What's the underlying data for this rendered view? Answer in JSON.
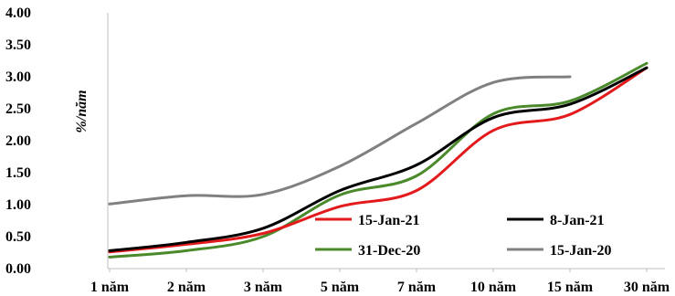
{
  "chart_data": {
    "type": "line",
    "title": "",
    "xlabel": "",
    "ylabel": "%/năm",
    "categories": [
      "1 năm",
      "2 năm",
      "3 năm",
      "5 năm",
      "7 năm",
      "10 năm",
      "15 năm",
      "30 năm"
    ],
    "ylim": [
      0,
      4
    ],
    "yticks": [
      "0.00",
      "0.50",
      "1.00",
      "1.50",
      "2.00",
      "2.50",
      "3.00",
      "3.50",
      "4.00"
    ],
    "grid": false,
    "legend_position": "bottom-right",
    "series": [
      {
        "name": "15-Jan-21",
        "color": "#e31a1c",
        "values": [
          0.26,
          0.38,
          0.55,
          0.97,
          1.22,
          2.16,
          2.41,
          3.14
        ]
      },
      {
        "name": "8-Jan-21",
        "color": "#000000",
        "values": [
          0.28,
          0.41,
          0.63,
          1.22,
          1.62,
          2.36,
          2.57,
          3.14
        ]
      },
      {
        "name": "31-Dec-20",
        "color": "#4a8a2a",
        "values": [
          0.18,
          0.28,
          0.5,
          1.15,
          1.45,
          2.42,
          2.62,
          3.21
        ]
      },
      {
        "name": "15-Jan-20",
        "color": "#808080",
        "values": [
          1.01,
          1.14,
          1.16,
          1.6,
          2.27,
          2.91,
          3.0,
          null
        ]
      }
    ]
  }
}
